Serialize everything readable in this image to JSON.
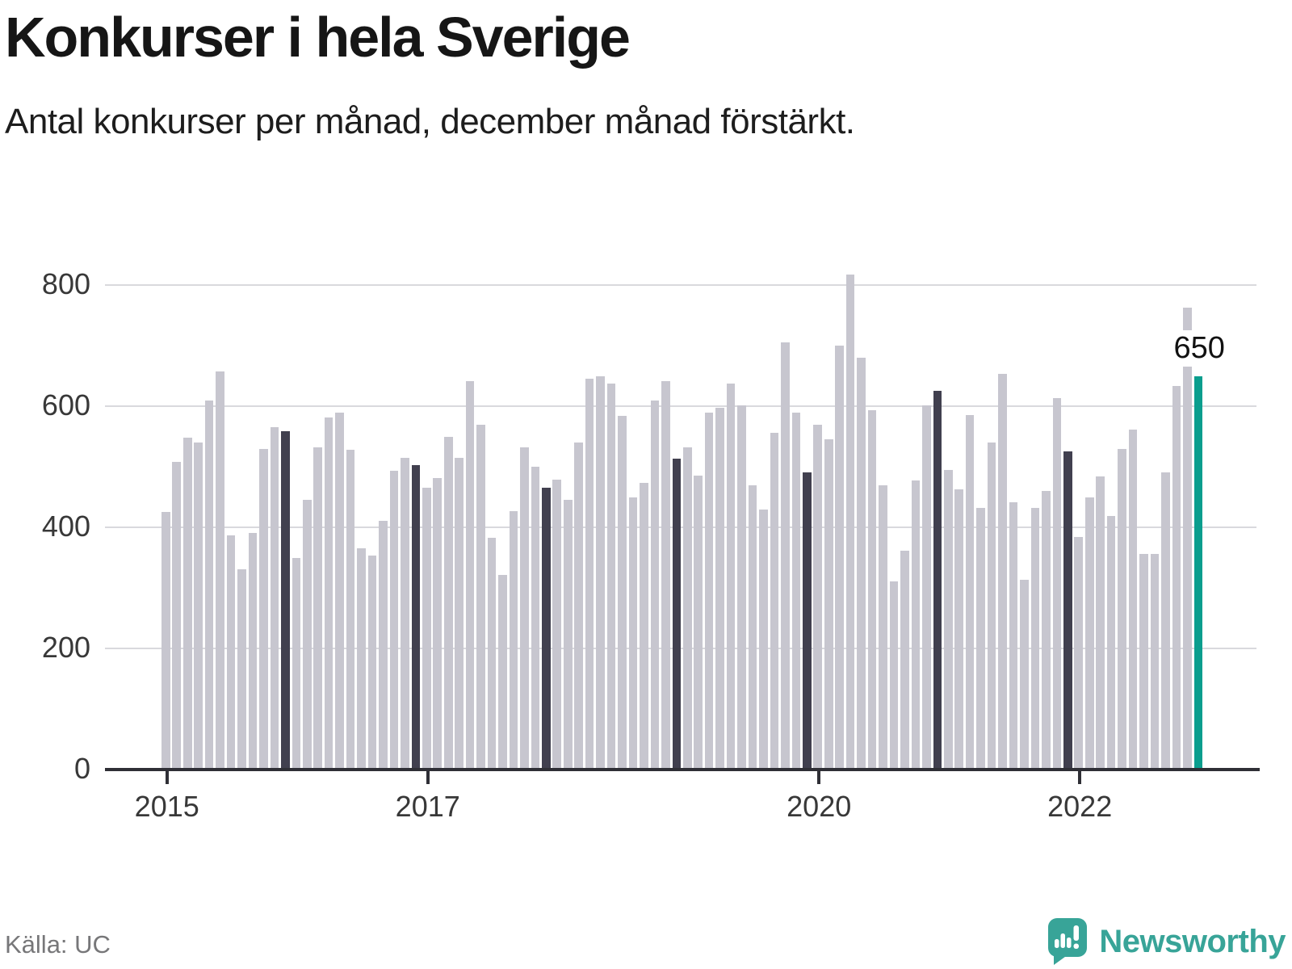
{
  "header": {
    "title": "Konkurser i hela Sverige",
    "subtitle": "Antal konkurser per månad, december månad förstärkt."
  },
  "footer": {
    "source": "Källa: UC",
    "brand": "Newsworthy"
  },
  "chart_data": {
    "type": "bar",
    "title": "Konkurser i hela Sverige",
    "subtitle": "Antal konkurser per månad, december månad förstärkt.",
    "ylabel": "",
    "xlabel": "",
    "ylim": [
      0,
      800
    ],
    "yticks": [
      0,
      200,
      400,
      600,
      800
    ],
    "grid": "horizontal",
    "x": [
      "2015-01",
      "2015-02",
      "2015-03",
      "2015-04",
      "2015-05",
      "2015-06",
      "2015-07",
      "2015-08",
      "2015-09",
      "2015-10",
      "2015-11",
      "2015-12",
      "2016-01",
      "2016-02",
      "2016-03",
      "2016-04",
      "2016-05",
      "2016-06",
      "2016-07",
      "2016-08",
      "2016-09",
      "2016-10",
      "2016-11",
      "2016-12",
      "2017-01",
      "2017-02",
      "2017-03",
      "2017-04",
      "2017-05",
      "2017-06",
      "2017-07",
      "2017-08",
      "2017-09",
      "2017-10",
      "2017-11",
      "2017-12",
      "2018-01",
      "2018-02",
      "2018-03",
      "2018-04",
      "2018-05",
      "2018-06",
      "2018-07",
      "2018-08",
      "2018-09",
      "2018-10",
      "2018-11",
      "2018-12",
      "2019-01",
      "2019-02",
      "2019-03",
      "2019-04",
      "2019-05",
      "2019-06",
      "2019-07",
      "2019-08",
      "2019-09",
      "2019-10",
      "2019-11",
      "2019-12",
      "2020-01",
      "2020-02",
      "2020-03",
      "2020-04",
      "2020-05",
      "2020-06",
      "2020-07",
      "2020-08",
      "2020-09",
      "2020-10",
      "2020-11",
      "2020-12",
      "2021-01",
      "2021-02",
      "2021-03",
      "2021-04",
      "2021-05",
      "2021-06",
      "2021-07",
      "2021-08",
      "2021-09",
      "2021-10",
      "2021-11",
      "2021-12",
      "2022-01",
      "2022-02",
      "2022-03",
      "2022-04",
      "2022-05",
      "2022-06",
      "2022-07",
      "2022-08",
      "2022-09",
      "2022-10",
      "2022-11",
      "2022-12"
    ],
    "values": [
      426,
      508,
      548,
      540,
      610,
      658,
      387,
      331,
      391,
      530,
      566,
      559,
      349,
      446,
      532,
      582,
      590,
      528,
      366,
      354,
      411,
      493,
      515,
      503,
      466,
      482,
      549,
      515,
      642,
      570,
      383,
      322,
      427,
      532,
      500,
      465,
      479,
      446,
      540,
      646,
      650,
      637,
      584,
      449,
      474,
      609,
      642,
      513,
      532,
      485,
      590,
      598,
      638,
      601,
      470,
      429,
      556,
      705,
      589,
      491,
      569,
      545,
      700,
      817,
      680,
      594,
      470,
      311,
      362,
      477,
      602,
      626,
      495,
      463,
      585,
      432,
      540,
      653,
      441,
      313,
      432,
      460,
      613,
      526,
      384,
      450,
      484,
      419,
      529,
      561,
      356,
      356,
      491,
      634,
      763,
      650
    ],
    "xticks": [
      {
        "label": "2015",
        "index": 0
      },
      {
        "label": "2017",
        "index": 24
      },
      {
        "label": "2020",
        "index": 60
      },
      {
        "label": "2022",
        "index": 84
      }
    ],
    "annotation": {
      "text": "650",
      "index": 95
    },
    "highlight_month": "2022-12",
    "colors": {
      "default_bar": "#c7c6cf",
      "december_bar": "#41404f",
      "highlight_bar": "#0a9e8e",
      "gridline": "#d9d9dd",
      "axis": "#2f2f36",
      "logo_teal": "#38a498"
    }
  }
}
